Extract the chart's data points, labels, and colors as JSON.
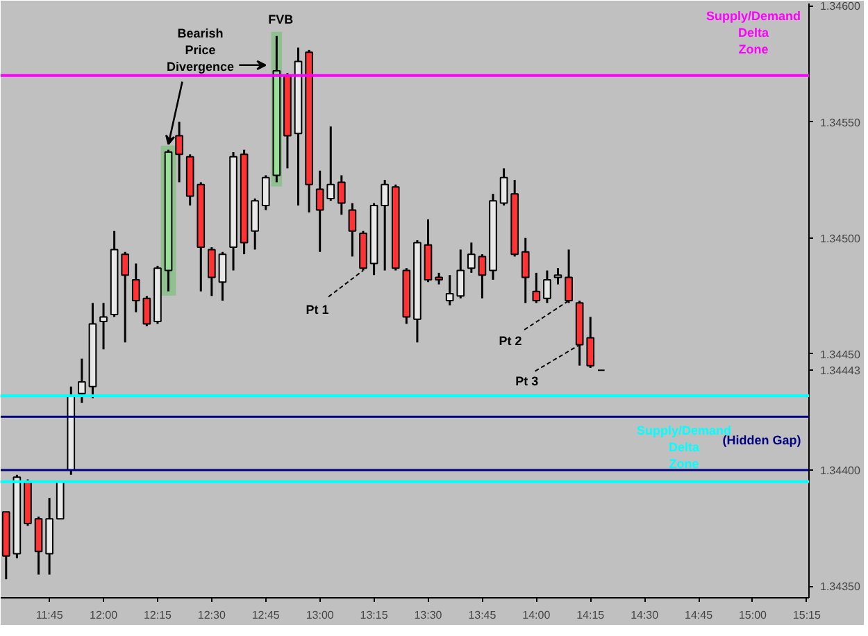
{
  "chart_data": {
    "type": "candlestick",
    "x": [
      11.55,
      11.6,
      11.65,
      11.7,
      11.75,
      11.8,
      11.85,
      11.9,
      11.95,
      12.0,
      12.05,
      12.1,
      12.15,
      12.2,
      12.25,
      12.3,
      12.35,
      12.4,
      12.45,
      12.5,
      12.55,
      12.6,
      12.65,
      12.7,
      12.75,
      12.8,
      12.85,
      12.9,
      12.95,
      13.0,
      13.05,
      13.1,
      13.15,
      13.2,
      13.25,
      13.3,
      13.35,
      13.4,
      13.45,
      13.5,
      13.55,
      13.6,
      13.65,
      13.7,
      13.75,
      13.8,
      13.85,
      13.9,
      13.95,
      14.0,
      14.05,
      14.1,
      14.15,
      14.2,
      14.25,
      14.3
    ],
    "ohlc": [
      [
        1.34382,
        1.34382,
        1.34353,
        1.34363
      ],
      [
        1.34364,
        1.34398,
        1.34362,
        1.34397
      ],
      [
        1.34395,
        1.34396,
        1.34376,
        1.34377
      ],
      [
        1.34379,
        1.3438,
        1.34355,
        1.34365
      ],
      [
        1.34364,
        1.34388,
        1.34355,
        1.34379
      ],
      [
        1.34379,
        1.34395,
        1.34379,
        1.34395
      ],
      [
        1.344,
        1.34436,
        1.34398,
        1.34432
      ],
      [
        1.34433,
        1.34448,
        1.34429,
        1.34438
      ],
      [
        1.34436,
        1.34472,
        1.34431,
        1.34463
      ],
      [
        1.34464,
        1.34472,
        1.34452,
        1.34466
      ],
      [
        1.34467,
        1.34503,
        1.34466,
        1.34495
      ],
      [
        1.34493,
        1.34494,
        1.34455,
        1.34484
      ],
      [
        1.34482,
        1.34489,
        1.34468,
        1.34473
      ],
      [
        1.34474,
        1.34475,
        1.34462,
        1.34463
      ],
      [
        1.34464,
        1.34488,
        1.34463,
        1.34487
      ],
      [
        1.34486,
        1.34538,
        1.34477,
        1.34537
      ],
      [
        1.34544,
        1.3455,
        1.34524,
        1.34536
      ],
      [
        1.34535,
        1.34536,
        1.34514,
        1.34518
      ],
      [
        1.34523,
        1.34524,
        1.34477,
        1.34496
      ],
      [
        1.34495,
        1.34496,
        1.34475,
        1.34483
      ],
      [
        1.34481,
        1.34494,
        1.34473,
        1.34493
      ],
      [
        1.34496,
        1.34537,
        1.34486,
        1.34535
      ],
      [
        1.34536,
        1.34538,
        1.34493,
        1.34498
      ],
      [
        1.34503,
        1.34517,
        1.34495,
        1.34516
      ],
      [
        1.34514,
        1.34527,
        1.34512,
        1.34526
      ],
      [
        1.34527,
        1.34587,
        1.34524,
        1.34572
      ],
      [
        1.3457,
        1.34571,
        1.3453,
        1.34544
      ],
      [
        1.34545,
        1.34582,
        1.34514,
        1.34576
      ],
      [
        1.3458,
        1.34581,
        1.34511,
        1.34523
      ],
      [
        1.34521,
        1.34529,
        1.34494,
        1.34512
      ],
      [
        1.34517,
        1.34548,
        1.34516,
        1.34523
      ],
      [
        1.34524,
        1.34527,
        1.3451,
        1.34515
      ],
      [
        1.34512,
        1.34515,
        1.34492,
        1.34503
      ],
      [
        1.34502,
        1.34503,
        1.34486,
        1.34487
      ],
      [
        1.34489,
        1.34515,
        1.34484,
        1.34514
      ],
      [
        1.34514,
        1.34525,
        1.34486,
        1.34523
      ],
      [
        1.34522,
        1.34523,
        1.34486,
        1.34487
      ],
      [
        1.34486,
        1.34487,
        1.34463,
        1.34466
      ],
      [
        1.34465,
        1.34499,
        1.34455,
        1.34498
      ],
      [
        1.34497,
        1.34508,
        1.34481,
        1.34482
      ],
      [
        1.34483,
        1.34485,
        1.3448,
        1.34482
      ],
      [
        1.34473,
        1.34484,
        1.34471,
        1.34476
      ],
      [
        1.34475,
        1.34495,
        1.34474,
        1.34486
      ],
      [
        1.34487,
        1.34498,
        1.34485,
        1.34493
      ],
      [
        1.34492,
        1.34493,
        1.34474,
        1.34484
      ],
      [
        1.34486,
        1.34519,
        1.34482,
        1.34516
      ],
      [
        1.34515,
        1.3453,
        1.34514,
        1.34526
      ],
      [
        1.34519,
        1.34525,
        1.34492,
        1.34493
      ],
      [
        1.34494,
        1.345,
        1.34472,
        1.34483
      ],
      [
        1.34477,
        1.34485,
        1.34472,
        1.34473
      ],
      [
        1.34474,
        1.34486,
        1.34472,
        1.34482
      ],
      [
        1.34483,
        1.34487,
        1.3448,
        1.34484
      ],
      [
        1.34483,
        1.34495,
        1.34472,
        1.34473
      ],
      [
        1.34472,
        1.34473,
        1.34445,
        1.34454
      ],
      [
        1.34457,
        1.34466,
        1.34444,
        1.34445
      ],
      [
        1.34443,
        1.34443,
        1.34443,
        1.34443
      ]
    ],
    "colors": [
      "#ff3333",
      "#e8e8e8",
      "#ff3333",
      "#ff3333",
      "#e8e8e8",
      "#e8e8e8",
      "#e8e8e8",
      "#e8e8e8",
      "#e8e8e8",
      "#e8e8e8",
      "#e8e8e8",
      "#ff3333",
      "#ff3333",
      "#ff3333",
      "#e8e8e8",
      "#98e098",
      "#ff3333",
      "#ff3333",
      "#ff3333",
      "#ff3333",
      "#e8e8e8",
      "#e8e8e8",
      "#ff3333",
      "#e8e8e8",
      "#e8e8e8",
      "#98e098",
      "#ff3333",
      "#e8e8e8",
      "#ff3333",
      "#ff3333",
      "#e8e8e8",
      "#ff3333",
      "#ff3333",
      "#ff3333",
      "#e8e8e8",
      "#e8e8e8",
      "#ff3333",
      "#ff3333",
      "#e8e8e8",
      "#ff3333",
      "#ff3333",
      "#e8e8e8",
      "#e8e8e8",
      "#e8e8e8",
      "#ff3333",
      "#e8e8e8",
      "#e8e8e8",
      "#ff3333",
      "#ff3333",
      "#ff3333",
      "#e8e8e8",
      "#e8e8e8",
      "#ff3333",
      "#ff3333",
      "#ff3333",
      "#000000"
    ],
    "xlim": [
      11.525,
      15.26
    ],
    "xticks": [
      {
        "value": 11.75,
        "label": "11:45"
      },
      {
        "value": 12.0,
        "label": "12:00"
      },
      {
        "value": 12.25,
        "label": "12:15"
      },
      {
        "value": 12.5,
        "label": "12:30"
      },
      {
        "value": 12.75,
        "label": "12:45"
      },
      {
        "value": 13.0,
        "label": "13:00"
      },
      {
        "value": 13.25,
        "label": "13:15"
      },
      {
        "value": 13.5,
        "label": "13:30"
      },
      {
        "value": 13.75,
        "label": "13:45"
      },
      {
        "value": 14.0,
        "label": "14:00"
      },
      {
        "value": 14.25,
        "label": "14:15"
      },
      {
        "value": 14.5,
        "label": "14:30"
      },
      {
        "value": 14.75,
        "label": "14:45"
      },
      {
        "value": 15.0,
        "label": "15:00"
      },
      {
        "value": 15.25,
        "label": "15:15"
      }
    ],
    "ylim": [
      1.34345,
      1.34601
    ],
    "yticks": [
      {
        "value": 1.3435,
        "label": "1.34350"
      },
      {
        "value": 1.344,
        "label": "1.34400"
      },
      {
        "value": 1.34443,
        "label": "1.34443"
      },
      {
        "value": 1.3445,
        "label": "1.34450"
      },
      {
        "value": 1.345,
        "label": "1.34500"
      },
      {
        "value": 1.3455,
        "label": "1.34550"
      },
      {
        "value": 1.346,
        "label": "1.34600"
      }
    ],
    "ref_lines": [
      {
        "axis": "y",
        "value": 1.3457,
        "label": "Supply/Demand\nDelta\nZone",
        "color": "#ff00ff"
      },
      {
        "axis": "y",
        "value": 1.34432,
        "label": "Supply/Demand\nDelta\nZone",
        "color": "#00ffff"
      },
      {
        "axis": "y",
        "value": 1.34423,
        "label": "(Hidden Gap)",
        "color": "#000080"
      },
      {
        "axis": "y",
        "value": 1.344,
        "label": null,
        "color": "#000080"
      },
      {
        "axis": "y",
        "value": 1.34395,
        "label": null,
        "color": "#00ffff"
      }
    ],
    "bands": [
      {
        "axis": "x",
        "from": 12.265,
        "to": 12.335,
        "color": "#70c070"
      },
      {
        "axis": "x",
        "from": 12.775,
        "to": 12.825,
        "color": "#70c070"
      }
    ],
    "annotations": [
      {
        "text": "Bearish\nPrice\nDivergence",
        "x": 12.3,
        "y": 1.34538
      },
      {
        "text": "FVB",
        "x": 12.8,
        "y": 1.34587
      },
      {
        "text": "Pt 1",
        "x": 13.2,
        "y": 1.34486
      },
      {
        "text": "Pt 2",
        "x": 14.15,
        "y": 1.34473
      },
      {
        "text": "Pt 3",
        "x": 14.2,
        "y": 1.34454
      }
    ],
    "grid": false
  }
}
